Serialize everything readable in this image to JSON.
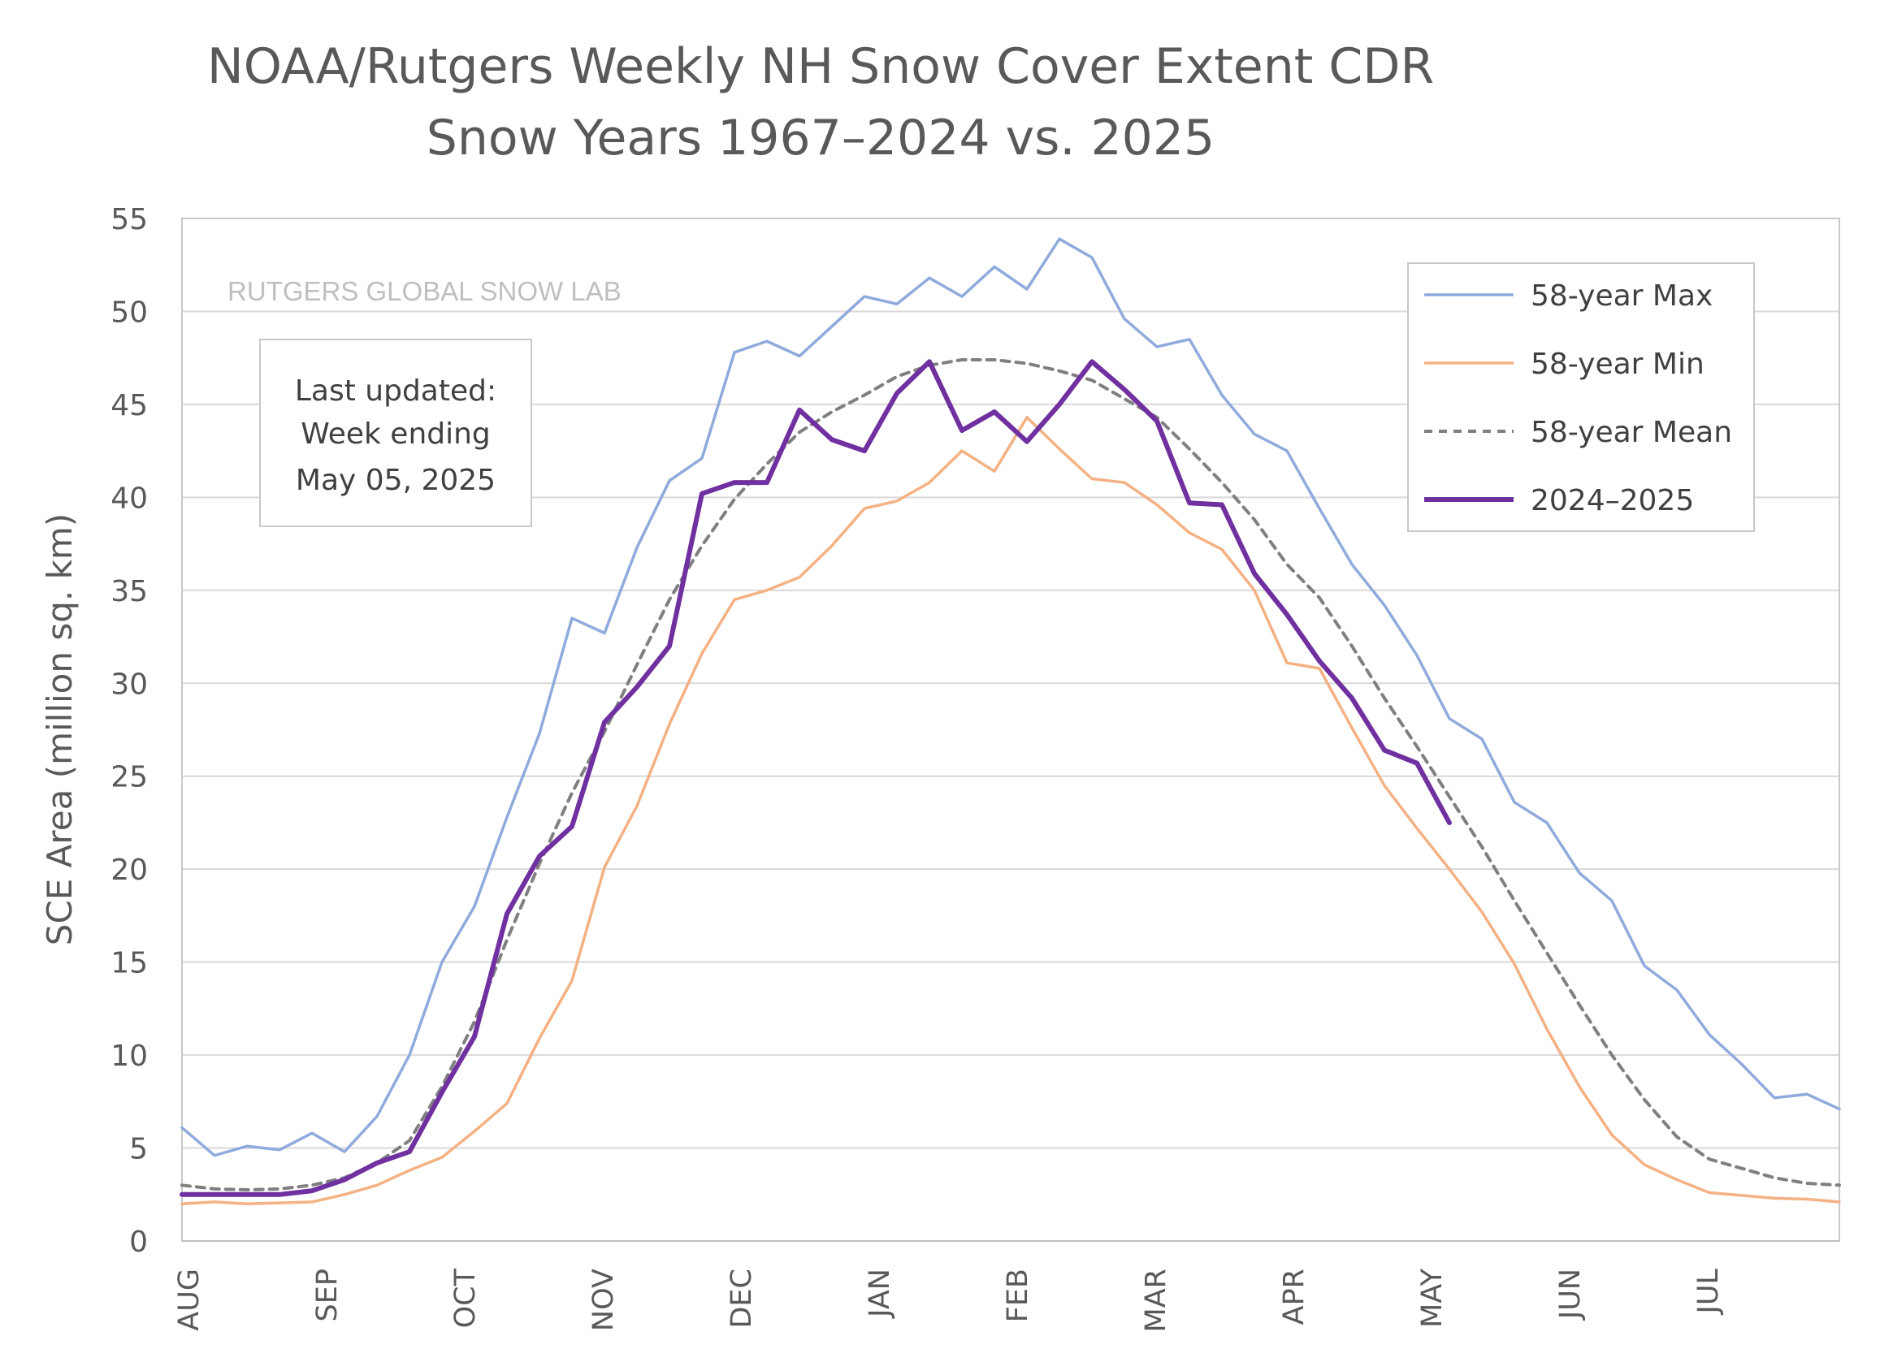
{
  "chart_data": {
    "type": "line",
    "title": "NOAA/Rutgers Weekly NH Snow Cover Extent CDR",
    "subtitle": "Snow Years 1967–2024 vs. 2025",
    "ylabel": "SCE Area (million sq. km)",
    "ylim": [
      0,
      55
    ],
    "yticks": [
      "0",
      "5",
      "10",
      "15",
      "20",
      "25",
      "30",
      "35",
      "40",
      "45",
      "50",
      "55"
    ],
    "month_labels": [
      "AUG",
      "SEP",
      "OCT",
      "NOV",
      "DEC",
      "JAN",
      "FEB",
      "MAR",
      "APR",
      "MAY",
      "JUN",
      "JUL"
    ],
    "grid": true,
    "legend_position": "top-right",
    "watermark": "RUTGERS GLOBAL SNOW LAB",
    "note": [
      "Last updated:",
      "Week ending",
      "May 05, 2025"
    ],
    "series": [
      {
        "name": "58-year Max",
        "color": "#8faadc",
        "dash": false,
        "values": [
          6.1,
          4.6,
          5.1,
          4.9,
          5.8,
          4.8,
          6.7,
          10.0,
          15.0,
          18.0,
          22.8,
          27.3,
          33.5,
          32.7,
          37.3,
          40.9,
          42.1,
          47.8,
          48.4,
          47.6,
          49.2,
          50.8,
          50.4,
          51.8,
          50.8,
          52.4,
          51.2,
          53.9,
          52.9,
          49.6,
          48.1,
          48.5,
          45.5,
          43.4,
          42.5,
          39.4,
          36.4,
          34.2,
          31.5,
          28.1,
          27.0,
          23.6,
          22.5,
          19.8,
          18.3,
          14.8,
          13.5,
          11.1,
          9.5,
          7.7,
          7.9,
          7.1
        ]
      },
      {
        "name": "58-year Min",
        "color": "#f4b183",
        "dash": false,
        "values": [
          2.0,
          2.1,
          2.0,
          2.05,
          2.1,
          2.5,
          3.0,
          3.8,
          4.5,
          5.9,
          7.4,
          10.9,
          14.0,
          20.1,
          23.4,
          27.8,
          31.6,
          34.5,
          35.0,
          35.7,
          37.4,
          39.4,
          39.8,
          40.8,
          42.5,
          41.4,
          44.3,
          42.6,
          41.0,
          40.8,
          39.6,
          38.1,
          37.2,
          35.0,
          31.1,
          30.8,
          27.6,
          24.5,
          22.2,
          20.0,
          17.7,
          14.9,
          11.4,
          8.3,
          5.7,
          4.1,
          3.3,
          2.6,
          2.45,
          2.3,
          2.25,
          2.1
        ]
      },
      {
        "name": "58-year Mean",
        "color": "#7f7f7f",
        "dash": true,
        "values": [
          3.0,
          2.8,
          2.75,
          2.8,
          3.0,
          3.4,
          4.2,
          5.4,
          8.3,
          11.8,
          16.2,
          20.3,
          24.1,
          27.4,
          31.0,
          34.5,
          37.4,
          39.9,
          41.8,
          43.5,
          44.6,
          45.5,
          46.5,
          47.1,
          47.4,
          47.4,
          47.2,
          46.8,
          46.3,
          45.3,
          44.3,
          42.6,
          40.8,
          38.8,
          36.4,
          34.6,
          32.0,
          29.2,
          26.6,
          23.9,
          21.2,
          18.3,
          15.5,
          12.7,
          10.0,
          7.6,
          5.6,
          4.4,
          3.9,
          3.4,
          3.1,
          3.0
        ]
      },
      {
        "name": "2024–2025",
        "color": "#7030a0",
        "dash": false,
        "values": [
          2.5,
          2.5,
          2.5,
          2.5,
          2.7,
          3.3,
          4.2,
          4.8,
          8.0,
          11.0,
          17.6,
          20.7,
          22.3,
          27.9,
          29.8,
          32.0,
          40.2,
          40.8,
          40.8,
          44.7,
          43.1,
          42.5,
          45.6,
          47.3,
          43.6,
          44.6,
          43.0,
          45.0,
          47.3,
          45.8,
          44.1,
          39.7,
          39.6,
          35.9,
          33.7,
          31.2,
          29.2,
          26.4,
          25.7,
          22.5
        ]
      }
    ]
  }
}
